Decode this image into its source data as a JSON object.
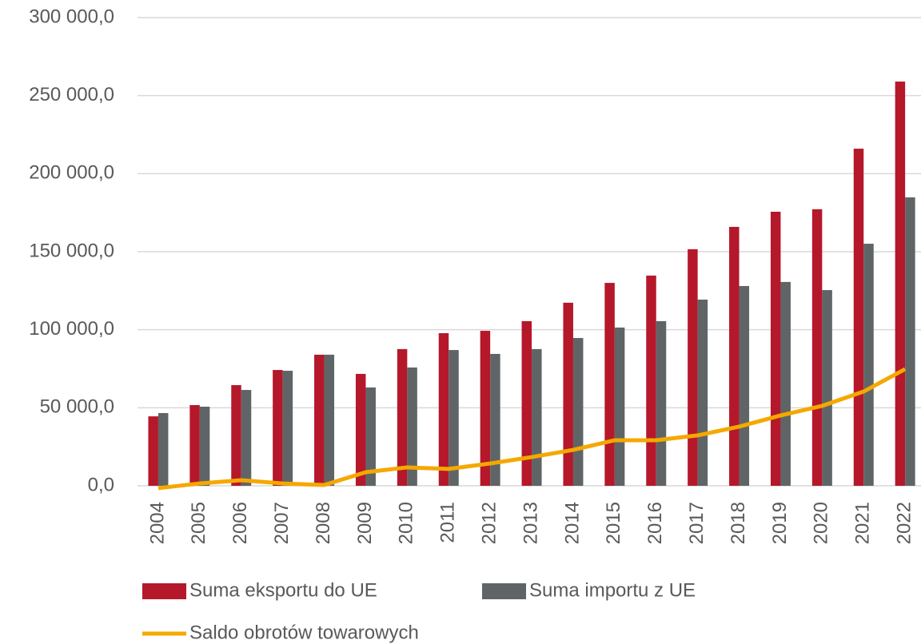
{
  "chart_data": {
    "type": "bar_line",
    "categories": [
      "2004",
      "2005",
      "2006",
      "2007",
      "2008",
      "2009",
      "2010",
      "2011",
      "2012",
      "2013",
      "2014",
      "2015",
      "2016",
      "2017",
      "2018",
      "2019",
      "2020",
      "2021",
      "2022"
    ],
    "series": [
      {
        "name": "Suma eksportu do UE",
        "type": "bar",
        "color": "#b5182a",
        "values": [
          44500,
          51700,
          64500,
          74200,
          84000,
          71700,
          87600,
          97800,
          99300,
          105500,
          117300,
          130000,
          134700,
          151600,
          165900,
          175600,
          177200,
          216000,
          259000
        ]
      },
      {
        "name": "Suma importu z UE",
        "type": "bar",
        "color": "#5f6567",
        "values": [
          46600,
          50700,
          61400,
          73700,
          84000,
          63000,
          75800,
          87000,
          84500,
          87600,
          94700,
          101400,
          105500,
          119300,
          128000,
          130600,
          125400,
          155100,
          184800
        ]
      },
      {
        "name": "Saldo obrotów towarowych",
        "type": "line",
        "color": "#f5a800",
        "values": [
          -1500,
          1500,
          3600,
          1500,
          500,
          8700,
          11800,
          10800,
          14300,
          18400,
          23000,
          29200,
          29200,
          32300,
          37900,
          45100,
          51200,
          60400,
          74800
        ]
      }
    ],
    "ylim": [
      0,
      300000
    ],
    "yticks": [
      {
        "value": 0,
        "label": "0,0"
      },
      {
        "value": 50000,
        "label": "50 000,0"
      },
      {
        "value": 100000,
        "label": "100 000,0"
      },
      {
        "value": 150000,
        "label": "150 000,0"
      },
      {
        "value": 200000,
        "label": "200 000,0"
      },
      {
        "value": 250000,
        "label": "250 000,0"
      },
      {
        "value": 300000,
        "label": "300 000,0"
      }
    ],
    "grid": true,
    "legend": "bottom"
  }
}
